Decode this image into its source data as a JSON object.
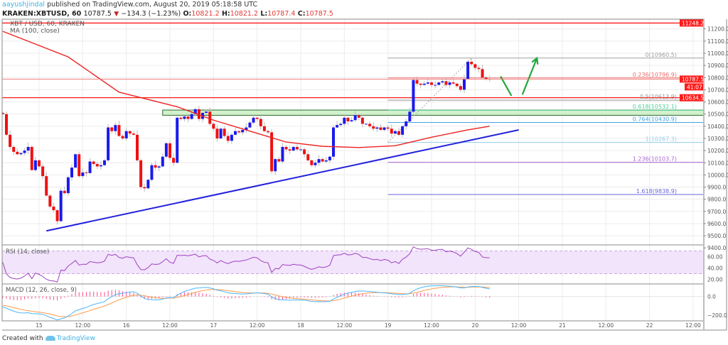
{
  "header": {
    "author": "aayushjindal",
    "published": "published on TradingView.com, August 20, 2019 05:18:58 UTC",
    "symbol": "KRAKEN:XBTUSD, 60",
    "last": "10787.5",
    "change": "−134.3 (−1.23%)",
    "o_label": "O:",
    "o": "10821.2",
    "h_label": "H:",
    "h": "10821.2",
    "l_label": "L:",
    "l": "10787.4",
    "c_label": "C:",
    "c": "10787.5"
  },
  "footer": {
    "created_with": "Created with",
    "brand": "TradingView"
  },
  "chart_data": {
    "type": "candlestick",
    "title": "XBT / USD, 60, KRAKEN",
    "ma_label": "MA (100, close)",
    "grid": true,
    "ylim": [
      9380,
      11330
    ],
    "price_ticks": [
      "11200.0",
      "11100.0",
      "11000.0",
      "10900.0",
      "10800.0",
      "10700.0",
      "10600.0",
      "10500.0",
      "10400.0",
      "10300.0",
      "10200.0",
      "10100.0",
      "10000.0",
      "9900.0",
      "9800.0",
      "9700.0",
      "9600.0",
      "9500.0",
      "9400.0"
    ],
    "time_ticks": [
      {
        "label": "15",
        "t": "2019-08-15 00:00"
      },
      {
        "label": "12:00",
        "t": "2019-08-15 12:00"
      },
      {
        "label": "16",
        "t": "2019-08-16 00:00"
      },
      {
        "label": "12:00",
        "t": "2019-08-16 12:00"
      },
      {
        "label": "17",
        "t": "2019-08-17 00:00"
      },
      {
        "label": "12:00",
        "t": "2019-08-17 12:00"
      },
      {
        "label": "18",
        "t": "2019-08-18 00:00"
      },
      {
        "label": "12:00",
        "t": "2019-08-18 12:00"
      },
      {
        "label": "19",
        "t": "2019-08-19 00:00"
      },
      {
        "label": "12:00",
        "t": "2019-08-19 12:00"
      },
      {
        "label": "20",
        "t": "2019-08-20 00:00"
      },
      {
        "label": "12:00",
        "t": "2019-08-20 12:00"
      },
      {
        "label": "21",
        "t": "2019-08-21 00:00"
      },
      {
        "label": "12:00",
        "t": "2019-08-21 12:00"
      },
      {
        "label": "22",
        "t": "2019-08-22 00:00"
      },
      {
        "label": "12:00",
        "t": "2019-08-22 12:00"
      }
    ],
    "candles": [
      {
        "date": "2019-08-14",
        "from_hour": 14,
        "first_open": 10510,
        "close": [
          10500,
          10330,
          10230,
          10190,
          10170,
          10180,
          10200,
          10230,
          10040,
          10120
        ]
      },
      {
        "date": "2019-08-15",
        "from_hour": 0,
        "close": [
          10070,
          9990,
          9830,
          9740,
          9710,
          9620,
          9870,
          9850,
          9980,
          10060,
          10170,
          9990,
          10020,
          10015,
          10110,
          10090,
          10070,
          10080,
          10120,
          10390,
          10360,
          10410,
          10320,
          10300
        ]
      },
      {
        "date": "2019-08-16",
        "from_hour": 0,
        "close": [
          10360,
          10340,
          10330,
          10120,
          9900,
          9890,
          9960,
          10080,
          10060,
          10070,
          10150,
          10260,
          10140,
          10100,
          10470,
          10460,
          10480,
          10460,
          10500,
          10540,
          10460,
          10510,
          10520,
          10420
        ]
      },
      {
        "date": "2019-08-17",
        "from_hour": 0,
        "close": [
          10380,
          10300,
          10380,
          10320,
          10280,
          10330,
          10360,
          10350,
          10370,
          10390,
          10430,
          10470,
          10460,
          10400,
          10360,
          10350,
          10030,
          10130,
          10110,
          10230,
          10210,
          10200,
          10230,
          10210
        ]
      },
      {
        "date": "2019-08-18",
        "from_hour": 0,
        "close": [
          10210,
          10170,
          10120,
          10080,
          10100,
          10130,
          10110,
          10120,
          10150,
          10390,
          10410,
          10420,
          10470,
          10440,
          10450,
          10490,
          10470,
          10420,
          10420,
          10400,
          10380,
          10390,
          10370,
          10390
        ]
      },
      {
        "date": "2019-08-19",
        "from_hour": 0,
        "close": [
          10380,
          10340,
          10360,
          10330,
          10400,
          10440,
          10520,
          10780,
          10750,
          10740,
          10750,
          10760,
          10740,
          10740,
          10760,
          10770,
          10740,
          10760,
          10750,
          10730,
          10700,
          10790,
          10930,
          10910
        ]
      },
      {
        "date": "2019-08-20",
        "from_hour": 0,
        "close": [
          10880,
          10870,
          10800,
          10790,
          10787.5
        ]
      }
    ],
    "ma100": [
      [
        "2019-08-14 14:00",
        11180
      ],
      [
        "2019-08-15 08:00",
        10970
      ],
      [
        "2019-08-15 22:00",
        10680
      ],
      [
        "2019-08-16 14:00",
        10560
      ],
      [
        "2019-08-17 00:00",
        10450
      ],
      [
        "2019-08-17 10:00",
        10360
      ],
      [
        "2019-08-17 20:00",
        10270
      ],
      [
        "2019-08-18 06:00",
        10235
      ],
      [
        "2019-08-18 16:00",
        10225
      ],
      [
        "2019-08-19 02:00",
        10240
      ],
      [
        "2019-08-19 12:00",
        10310
      ],
      [
        "2019-08-19 22:00",
        10370
      ],
      [
        "2019-08-20 04:00",
        10400
      ]
    ],
    "trendline": {
      "from": [
        "2019-08-15 02:00",
        9540
      ],
      "to": [
        "2019-08-20 12:00",
        10370
      ],
      "color": "#2222dd"
    },
    "support_zone": {
      "from": "2019-08-16 10:00",
      "to": "2019-08-22 16:00",
      "low": 10490,
      "high": 10533,
      "color": "#c8eec0"
    },
    "horizontal_lines": [
      {
        "value": 11248.2,
        "label": "11248.2",
        "color": "#ff1a1a"
      },
      {
        "value": 10634.5,
        "label": "10634.5",
        "color": "#ff1a1a"
      }
    ],
    "fib": {
      "from": [
        "2019-08-19 00:00",
        10267.3
      ],
      "to": [
        "2019-08-19 23:00",
        10960.5
      ],
      "levels": [
        {
          "label": "0(10960.5)",
          "value": 10960.5,
          "color": "#a0a0a0"
        },
        {
          "label": "0.236(10796.9)",
          "value": 10796.9,
          "color": "#f06a6a"
        },
        {
          "label": "0.5(10613.9)",
          "value": 10613.9,
          "color": "#909090"
        },
        {
          "label": "0.618(10532.1)",
          "value": 10532.1,
          "color": "#4fcf95"
        },
        {
          "label": "0.764(10430.9)",
          "value": 10430.9,
          "color": "#45a3dd"
        },
        {
          "label": "1(10267.3)",
          "value": 10267.3,
          "color": "#92cbe8"
        },
        {
          "label": "1.236(10103.7)",
          "value": 10103.7,
          "color": "#a865d0"
        },
        {
          "label": "1.618(9838.9)",
          "value": 9838.9,
          "color": "#6767d8"
        }
      ]
    },
    "arrows": [
      {
        "from": [
          "2019-08-20 07:00",
          10810
        ],
        "to": [
          "2019-08-20 10:00",
          10650
        ],
        "color": "#1fa83a"
      },
      {
        "from": [
          "2019-08-20 13:00",
          10660
        ],
        "to": [
          "2019-08-20 17:00",
          10960
        ],
        "color": "#1fa83a",
        "head": true
      }
    ],
    "last_price": {
      "value": 10787.5,
      "label": "10787.5",
      "countdown": "41:07"
    },
    "rsi": {
      "label": "RSI (14, close)",
      "ticks": [
        "60.00",
        "40.00",
        "20.00"
      ],
      "band": [
        30,
        70
      ]
    },
    "macd": {
      "label": "MACD (12, 26, close, 9)",
      "ticks": [
        "0.0",
        "−200.0"
      ]
    },
    "colors": {
      "up": "#1a1aee",
      "down": "#ee1111",
      "ma": "#ee2222",
      "rsi": "#a040c0",
      "macd": "#4ab6ff",
      "signal": "#ff9a4a",
      "hist": "#ff4a8d"
    }
  }
}
